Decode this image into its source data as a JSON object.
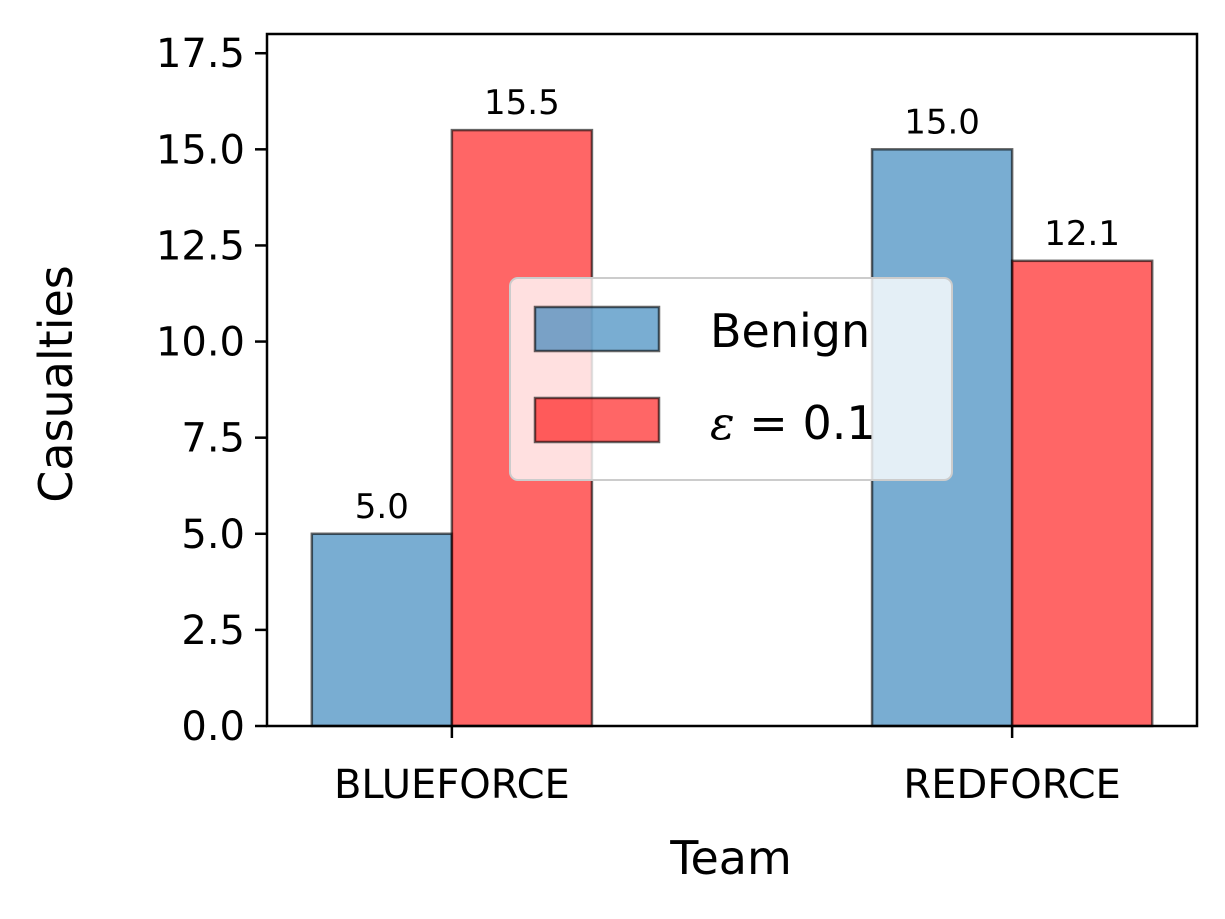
{
  "chart_data": {
    "type": "bar",
    "title": "",
    "xlabel": "Team",
    "ylabel": "Casualties",
    "categories": [
      "BLUEFORCE",
      "REDFORCE"
    ],
    "series": [
      {
        "name": "Benign",
        "values": [
          5.0,
          15.0
        ],
        "labels": [
          "5.0",
          "15.0"
        ],
        "color": "#1f77b4"
      },
      {
        "name": "ε = 0.1",
        "name_symbol": "ε",
        "name_rest": " = 0.1",
        "values": [
          15.5,
          12.1
        ],
        "labels": [
          "15.5",
          "12.1"
        ],
        "color": "#ff0000"
      }
    ],
    "ylim": [
      0,
      18
    ],
    "yticks": [
      0.0,
      2.5,
      5.0,
      7.5,
      10.0,
      12.5,
      15.0,
      17.5
    ],
    "ytick_labels": [
      "0.0",
      "2.5",
      "5.0",
      "7.5",
      "10.0",
      "12.5",
      "15.0",
      "17.5"
    ],
    "grid": false,
    "legend_position": "center"
  }
}
